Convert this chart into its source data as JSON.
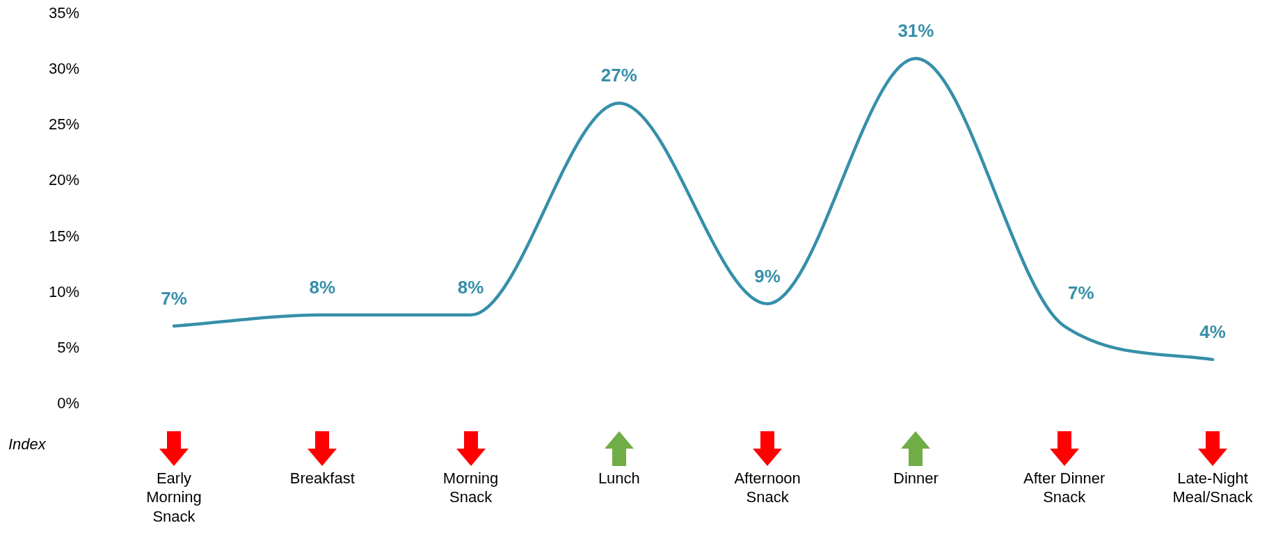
{
  "chart_data": {
    "type": "line",
    "categories": [
      "Early Morning Snack",
      "Breakfast",
      "Morning Snack",
      "Lunch",
      "Afternoon Snack",
      "Dinner",
      "After Dinner Snack",
      "Late-Night Meal/Snack"
    ],
    "values": [
      7,
      8,
      8,
      27,
      9,
      31,
      7,
      4
    ],
    "value_labels": [
      "7%",
      "8%",
      "8%",
      "27%",
      "9%",
      "31%",
      "7%",
      "4%"
    ],
    "color": "#368fa9",
    "ylim": [
      0,
      35
    ],
    "yticks": [
      {
        "value": 0,
        "label": "0%"
      },
      {
        "value": 5,
        "label": "5%"
      },
      {
        "value": 10,
        "label": "10%"
      },
      {
        "value": 15,
        "label": "15%"
      },
      {
        "value": 20,
        "label": "20%"
      },
      {
        "value": 25,
        "label": "25%"
      },
      {
        "value": 30,
        "label": "30%"
      },
      {
        "value": 35,
        "label": "35%"
      }
    ],
    "annotations": [
      "Index"
    ]
  }
}
